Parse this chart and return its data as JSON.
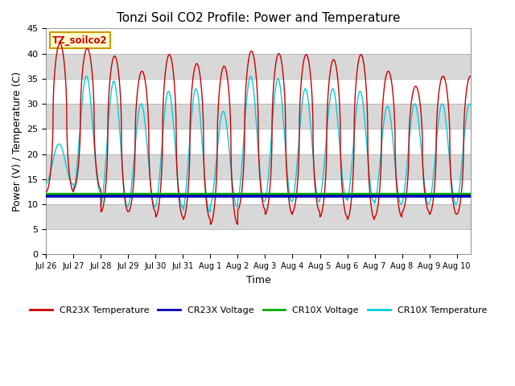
{
  "title": "Tonzi Soil CO2 Profile: Power and Temperature",
  "xlabel": "Time",
  "ylabel": "Power (V) / Temperature (C)",
  "ylim": [
    0,
    45
  ],
  "yticks": [
    0,
    5,
    10,
    15,
    20,
    25,
    30,
    35,
    40,
    45
  ],
  "plot_bg_color": "#d8d8d8",
  "annotation_text": "TZ_soilco2",
  "annotation_bg": "#ffffcc",
  "annotation_border": "#cc9900",
  "cr23x_temp_color": "#cc0000",
  "cr23x_volt_color": "#0000bb",
  "cr10x_volt_color": "#00aa00",
  "cr10x_temp_color": "#00ccdd",
  "x_tick_labels": [
    "Jul 26",
    "Jul 27",
    "Jul 28",
    "Jul 29",
    "Jul 30",
    "Jul 31",
    "Aug 1",
    "Aug 2",
    "Aug 3",
    "Aug 4",
    "Aug 5",
    "Aug 6",
    "Aug 7",
    "Aug 8",
    "Aug 9",
    "Aug 10"
  ],
  "cr23x_volt_level": 11.6,
  "cr10x_volt_level": 12.0,
  "legend_labels": [
    "CR23X Temperature",
    "CR23X Voltage",
    "CR10X Voltage",
    "CR10X Temperature"
  ],
  "legend_colors": [
    "#cc0000",
    "#0000bb",
    "#00aa00",
    "#00ccdd"
  ],
  "band_colors": [
    "#ffffff",
    "#d8d8d8"
  ]
}
